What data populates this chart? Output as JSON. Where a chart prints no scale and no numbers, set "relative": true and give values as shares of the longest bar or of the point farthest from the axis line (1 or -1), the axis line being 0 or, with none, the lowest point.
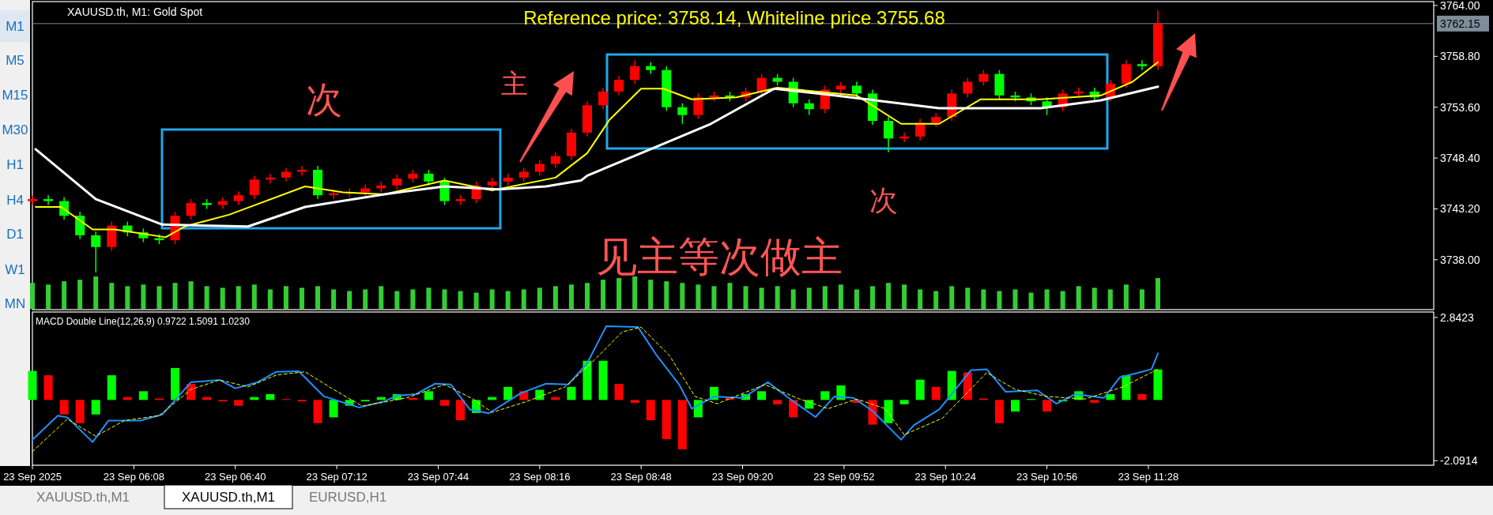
{
  "chart_data": [
    {
      "type": "candlestick",
      "title": "XAUUSD.th, M1:  Gold Spot",
      "x": [
        "2025-09-23T05:36",
        "2025-09-23T05:41",
        "2025-09-23T05:46",
        "2025-09-23T05:51",
        "2025-09-23T05:56",
        "2025-09-23T06:01",
        "2025-09-23T06:06",
        "2025-09-23T06:11",
        "2025-09-23T06:16",
        "2025-09-23T06:21",
        "2025-09-23T06:26",
        "2025-09-23T06:31",
        "2025-09-23T06:36",
        "2025-09-23T06:41",
        "2025-09-23T06:46",
        "2025-09-23T06:51",
        "2025-09-23T06:56",
        "2025-09-23T07:01",
        "2025-09-23T07:06",
        "2025-09-23T07:11",
        "2025-09-23T07:16",
        "2025-09-23T07:21",
        "2025-09-23T07:26",
        "2025-09-23T07:31",
        "2025-09-23T07:36",
        "2025-09-23T07:41",
        "2025-09-23T07:46",
        "2025-09-23T07:51",
        "2025-09-23T07:56",
        "2025-09-23T08:01",
        "2025-09-23T08:06",
        "2025-09-23T08:11",
        "2025-09-23T08:16",
        "2025-09-23T08:21",
        "2025-09-23T08:26",
        "2025-09-23T08:31",
        "2025-09-23T08:36",
        "2025-09-23T08:41",
        "2025-09-23T08:46",
        "2025-09-23T08:51",
        "2025-09-23T08:56",
        "2025-09-23T09:01",
        "2025-09-23T09:06",
        "2025-09-23T09:11",
        "2025-09-23T09:16",
        "2025-09-23T09:21",
        "2025-09-23T09:26",
        "2025-09-23T09:31",
        "2025-09-23T09:36",
        "2025-09-23T09:41",
        "2025-09-23T09:46",
        "2025-09-23T09:51",
        "2025-09-23T09:56",
        "2025-09-23T10:01",
        "2025-09-23T10:06",
        "2025-09-23T10:11",
        "2025-09-23T10:16",
        "2025-09-23T10:21",
        "2025-09-23T10:26",
        "2025-09-23T10:31",
        "2025-09-23T10:36",
        "2025-09-23T10:41",
        "2025-09-23T10:46",
        "2025-09-23T10:51",
        "2025-09-23T10:56",
        "2025-09-23T11:01",
        "2025-09-23T11:06",
        "2025-09-23T11:11",
        "2025-09-23T11:16",
        "2025-09-23T11:21",
        "2025-09-23T11:26",
        "2025-09-23T11:31"
      ],
      "ohlc": [
        [
          3744.0,
          3744.6,
          3743.6,
          3744.2
        ],
        [
          3744.2,
          3744.6,
          3743.6,
          3744.0
        ],
        [
          3744.0,
          3744.4,
          3742.1,
          3742.5
        ],
        [
          3742.5,
          3742.9,
          3740.1,
          3740.5
        ],
        [
          3740.5,
          3740.9,
          3736.7,
          3739.3
        ],
        [
          3739.3,
          3741.9,
          3738.9,
          3741.5
        ],
        [
          3741.5,
          3741.9,
          3740.4,
          3740.8
        ],
        [
          3740.8,
          3741.2,
          3739.8,
          3740.2
        ],
        [
          3740.2,
          3740.6,
          3739.6,
          3740.0
        ],
        [
          3740.0,
          3742.9,
          3739.6,
          3742.5
        ],
        [
          3742.5,
          3744.2,
          3742.1,
          3743.8
        ],
        [
          3743.8,
          3744.2,
          3743.2,
          3743.6
        ],
        [
          3743.6,
          3744.4,
          3743.2,
          3744.0
        ],
        [
          3744.0,
          3745.0,
          3743.6,
          3744.6
        ],
        [
          3744.6,
          3746.6,
          3744.2,
          3746.2
        ],
        [
          3746.2,
          3746.8,
          3745.8,
          3746.4
        ],
        [
          3746.4,
          3747.4,
          3746.0,
          3747.0
        ],
        [
          3747.0,
          3747.6,
          3746.6,
          3747.2
        ],
        [
          3747.2,
          3747.6,
          3744.2,
          3744.6
        ],
        [
          3744.6,
          3745.2,
          3744.2,
          3744.8
        ],
        [
          3744.8,
          3745.3,
          3744.4,
          3744.9
        ],
        [
          3744.9,
          3745.7,
          3744.5,
          3745.3
        ],
        [
          3745.3,
          3746.0,
          3744.9,
          3745.6
        ],
        [
          3745.6,
          3746.7,
          3745.2,
          3746.3
        ],
        [
          3746.3,
          3747.2,
          3745.9,
          3746.8
        ],
        [
          3746.8,
          3747.2,
          3745.6,
          3746.0
        ],
        [
          3746.0,
          3746.4,
          3743.6,
          3744.0
        ],
        [
          3744.0,
          3744.6,
          3743.6,
          3744.2
        ],
        [
          3744.2,
          3746.0,
          3743.8,
          3745.6
        ],
        [
          3745.6,
          3746.4,
          3745.2,
          3746.0
        ],
        [
          3746.0,
          3746.8,
          3745.6,
          3746.4
        ],
        [
          3746.4,
          3747.4,
          3746.0,
          3747.0
        ],
        [
          3747.0,
          3748.2,
          3746.6,
          3747.8
        ],
        [
          3747.8,
          3749.0,
          3747.4,
          3748.6
        ],
        [
          3748.6,
          3751.4,
          3748.2,
          3751.0
        ],
        [
          3751.0,
          3754.2,
          3750.6,
          3753.8
        ],
        [
          3753.8,
          3755.6,
          3753.4,
          3755.2
        ],
        [
          3755.2,
          3756.8,
          3754.8,
          3756.4
        ],
        [
          3756.4,
          3758.4,
          3756.0,
          3757.8
        ],
        [
          3757.8,
          3758.2,
          3757.0,
          3757.4
        ],
        [
          3757.4,
          3757.8,
          3753.2,
          3753.6
        ],
        [
          3753.6,
          3754.0,
          3751.9,
          3752.8
        ],
        [
          3752.8,
          3755.0,
          3752.4,
          3754.6
        ],
        [
          3754.6,
          3755.2,
          3754.2,
          3754.8
        ],
        [
          3754.8,
          3755.2,
          3754.2,
          3754.6
        ],
        [
          3754.6,
          3755.6,
          3754.2,
          3755.2
        ],
        [
          3755.2,
          3757.0,
          3754.8,
          3756.6
        ],
        [
          3756.6,
          3757.0,
          3755.8,
          3756.2
        ],
        [
          3756.2,
          3756.6,
          3753.6,
          3754.0
        ],
        [
          3754.0,
          3754.4,
          3752.8,
          3753.4
        ],
        [
          3753.4,
          3755.8,
          3753.0,
          3755.4
        ],
        [
          3755.4,
          3756.2,
          3755.0,
          3755.8
        ],
        [
          3755.8,
          3756.2,
          3754.6,
          3755.0
        ],
        [
          3755.0,
          3755.4,
          3751.8,
          3752.2
        ],
        [
          3752.2,
          3752.6,
          3749.0,
          3750.4
        ],
        [
          3750.4,
          3751.0,
          3750.0,
          3750.6
        ],
        [
          3750.6,
          3752.4,
          3750.2,
          3752.0
        ],
        [
          3752.0,
          3753.0,
          3751.6,
          3752.6
        ],
        [
          3752.6,
          3755.4,
          3752.2,
          3755.0
        ],
        [
          3755.0,
          3756.6,
          3754.6,
          3756.2
        ],
        [
          3756.2,
          3757.4,
          3755.8,
          3757.0
        ],
        [
          3757.0,
          3757.4,
          3754.4,
          3754.8
        ],
        [
          3754.8,
          3755.2,
          3754.2,
          3754.6
        ],
        [
          3754.6,
          3755.0,
          3753.8,
          3754.2
        ],
        [
          3754.2,
          3754.6,
          3752.8,
          3753.6
        ],
        [
          3753.6,
          3755.4,
          3753.2,
          3755.0
        ],
        [
          3755.0,
          3755.6,
          3754.6,
          3755.2
        ],
        [
          3755.2,
          3755.6,
          3754.2,
          3754.6
        ],
        [
          3754.6,
          3756.4,
          3754.2,
          3756.0
        ],
        [
          3756.0,
          3758.4,
          3755.6,
          3758.0
        ],
        [
          3758.0,
          3758.4,
          3757.4,
          3757.8
        ],
        [
          3757.8,
          3763.5,
          3757.4,
          3762.15
        ]
      ],
      "colors": [
        "#ff0000",
        "#00ff00",
        "#00ff00",
        "#00ff00",
        "#00ff00",
        "#ff0000",
        "#00ff00",
        "#00ff00",
        "#00ff00",
        "#ff0000",
        "#ff0000",
        "#00ff00",
        "#ff0000",
        "#ff0000",
        "#ff0000",
        "#ff0000",
        "#ff0000",
        "#ff0000",
        "#00ff00",
        "#ff0000",
        "#ff0000",
        "#ff0000",
        "#ff0000",
        "#ff0000",
        "#ff0000",
        "#00ff00",
        "#00ff00",
        "#ff0000",
        "#ff0000",
        "#ff0000",
        "#ff0000",
        "#ff0000",
        "#ff0000",
        "#ff0000",
        "#ff0000",
        "#ff0000",
        "#ff0000",
        "#ff0000",
        "#ff0000",
        "#00ff00",
        "#00ff00",
        "#00ff00",
        "#ff0000",
        "#ff0000",
        "#00ff00",
        "#ff0000",
        "#ff0000",
        "#00ff00",
        "#00ff00",
        "#00ff00",
        "#ff0000",
        "#ff0000",
        "#00ff00",
        "#00ff00",
        "#00ff00",
        "#ff0000",
        "#ff0000",
        "#ff0000",
        "#ff0000",
        "#ff0000",
        "#ff0000",
        "#00ff00",
        "#00ff00",
        "#00ff00",
        "#00ff00",
        "#ff0000",
        "#ff0000",
        "#00ff00",
        "#ff0000",
        "#ff0000",
        "#00ff00",
        "#ff0000"
      ],
      "series": [
        {
          "type": "line",
          "color": "#ffff00",
          "x": [
            "2025-09-23T05:37",
            "2025-09-23T05:45",
            "2025-09-23T05:55",
            "2025-09-23T06:02",
            "2025-09-23T06:18",
            "2025-09-23T06:24",
            "2025-09-23T06:38",
            "2025-09-23T07:02",
            "2025-09-23T07:14",
            "2025-09-23T07:27",
            "2025-09-23T07:46",
            "2025-09-23T08:01",
            "2025-09-23T08:21",
            "2025-09-23T08:31",
            "2025-09-23T08:38",
            "2025-09-23T08:48",
            "2025-09-23T08:55",
            "2025-09-23T09:04",
            "2025-09-23T09:18",
            "2025-09-23T09:31",
            "2025-09-23T09:56",
            "2025-09-23T10:10",
            "2025-09-23T10:22",
            "2025-09-23T10:35",
            "2025-09-23T10:54",
            "2025-09-23T11:13",
            "2025-09-23T11:23",
            "2025-09-23T11:31"
          ],
          "values": [
            3743.4,
            3743.4,
            3741.1,
            3741.1,
            3740.3,
            3741.4,
            3742.6,
            3745.5,
            3744.9,
            3744.7,
            3746.1,
            3745.1,
            3746.4,
            3748.9,
            3752.3,
            3755.5,
            3755.5,
            3754.4,
            3754.6,
            3755.6,
            3754.8,
            3751.9,
            3751.9,
            3754.4,
            3754.4,
            3754.8,
            3756.2,
            3758.2
          ]
        },
        {
          "type": "line",
          "color": "#ffffff",
          "x": [
            "2025-09-23T05:37",
            "2025-09-23T05:56",
            "2025-09-23T06:17",
            "2025-09-23T06:44",
            "2025-09-23T07:02",
            "2025-09-23T07:27",
            "2025-09-23T07:46",
            "2025-09-23T08:03",
            "2025-09-23T08:18",
            "2025-09-23T08:29",
            "2025-09-23T08:31",
            "2025-09-23T08:48",
            "2025-09-23T09:10",
            "2025-09-23T09:30",
            "2025-09-23T09:49",
            "2025-09-23T10:22",
            "2025-09-23T10:54",
            "2025-09-23T11:13",
            "2025-09-23T11:31"
          ],
          "values": [
            3749.3,
            3744.2,
            3741.6,
            3741.4,
            3743.4,
            3744.7,
            3745.5,
            3745.2,
            3745.5,
            3746.1,
            3746.6,
            3748.9,
            3751.9,
            3755.5,
            3754.8,
            3753.5,
            3753.5,
            3754.3,
            3755.7
          ]
        }
      ],
      "xlim": [
        "2025-09-23T05:36",
        "2025-09-23T12:58"
      ],
      "ylim": [
        3732.9,
        3764.4
      ],
      "yticks": [
        {
          "value": 3764,
          "label": "3764.00"
        },
        {
          "value": 3758.8,
          "label": "3758.80"
        },
        {
          "value": 3753.6,
          "label": "3753.60"
        },
        {
          "value": 3748.4,
          "label": "3748.40"
        },
        {
          "value": 3743.2,
          "label": "3743.20"
        },
        {
          "value": 3738,
          "label": "3738.00"
        }
      ],
      "ref_lines": [
        {
          "axis": "y",
          "value": 3762.15,
          "label": "3762.15",
          "color": "#7f8c99"
        }
      ],
      "annotations": [
        "Reference price: 3758.14, Whiteline price 3755.68",
        "次",
        "主",
        "次",
        "见主等次做主"
      ],
      "tick_labels": "y"
    },
    {
      "type": "bar",
      "relative": true,
      "color": "#32cd32",
      "x": [
        "2025-09-23T05:36",
        "2025-09-23T05:41",
        "2025-09-23T05:46",
        "2025-09-23T05:51",
        "2025-09-23T05:56",
        "2025-09-23T06:01",
        "2025-09-23T06:06",
        "2025-09-23T06:11",
        "2025-09-23T06:16",
        "2025-09-23T06:21",
        "2025-09-23T06:26",
        "2025-09-23T06:31",
        "2025-09-23T06:36",
        "2025-09-23T06:41",
        "2025-09-23T06:46",
        "2025-09-23T06:51",
        "2025-09-23T06:56",
        "2025-09-23T07:01",
        "2025-09-23T07:06",
        "2025-09-23T07:11",
        "2025-09-23T07:16",
        "2025-09-23T07:21",
        "2025-09-23T07:26",
        "2025-09-23T07:31",
        "2025-09-23T07:36",
        "2025-09-23T07:41",
        "2025-09-23T07:46",
        "2025-09-23T07:51",
        "2025-09-23T07:56",
        "2025-09-23T08:01",
        "2025-09-23T08:06",
        "2025-09-23T08:11",
        "2025-09-23T08:16",
        "2025-09-23T08:21",
        "2025-09-23T08:26",
        "2025-09-23T08:31",
        "2025-09-23T08:36",
        "2025-09-23T08:41",
        "2025-09-23T08:46",
        "2025-09-23T08:51",
        "2025-09-23T08:56",
        "2025-09-23T09:01",
        "2025-09-23T09:06",
        "2025-09-23T09:11",
        "2025-09-23T09:16",
        "2025-09-23T09:21",
        "2025-09-23T09:26",
        "2025-09-23T09:31",
        "2025-09-23T09:36",
        "2025-09-23T09:41",
        "2025-09-23T09:46",
        "2025-09-23T09:51",
        "2025-09-23T09:56",
        "2025-09-23T10:01",
        "2025-09-23T10:06",
        "2025-09-23T10:11",
        "2025-09-23T10:16",
        "2025-09-23T10:21",
        "2025-09-23T10:26",
        "2025-09-23T10:31",
        "2025-09-23T10:36",
        "2025-09-23T10:41",
        "2025-09-23T10:46",
        "2025-09-23T10:51",
        "2025-09-23T10:56",
        "2025-09-23T11:01",
        "2025-09-23T11:06",
        "2025-09-23T11:11",
        "2025-09-23T11:16",
        "2025-09-23T11:21",
        "2025-09-23T11:26",
        "2025-09-23T11:31"
      ],
      "values": [
        0.8,
        0.75,
        0.85,
        0.9,
        1.0,
        0.8,
        0.7,
        0.75,
        0.7,
        0.8,
        0.85,
        0.7,
        0.65,
        0.7,
        0.75,
        0.6,
        0.7,
        0.65,
        0.7,
        0.6,
        0.55,
        0.6,
        0.7,
        0.55,
        0.6,
        0.65,
        0.6,
        0.55,
        0.5,
        0.6,
        0.55,
        0.6,
        0.65,
        0.7,
        0.75,
        0.8,
        0.9,
        0.95,
        1.0,
        0.9,
        0.85,
        0.8,
        0.75,
        0.7,
        0.8,
        0.7,
        0.65,
        0.7,
        0.6,
        0.65,
        0.7,
        0.75,
        0.6,
        0.7,
        0.8,
        0.75,
        0.6,
        0.55,
        0.7,
        0.65,
        0.6,
        0.55,
        0.6,
        0.5,
        0.6,
        0.55,
        0.7,
        0.65,
        0.6,
        0.75,
        0.6,
        0.95
      ],
      "xlim": [
        "2025-09-23T05:36",
        "2025-09-23T12:58"
      ],
      "tick_labels": false
    },
    {
      "type": "bar",
      "x": [
        "2025-09-23T05:36",
        "2025-09-23T05:41",
        "2025-09-23T05:46",
        "2025-09-23T05:51",
        "2025-09-23T05:56",
        "2025-09-23T06:01",
        "2025-09-23T06:06",
        "2025-09-23T06:11",
        "2025-09-23T06:16",
        "2025-09-23T06:21",
        "2025-09-23T06:26",
        "2025-09-23T06:31",
        "2025-09-23T06:36",
        "2025-09-23T06:41",
        "2025-09-23T06:46",
        "2025-09-23T06:51",
        "2025-09-23T06:56",
        "2025-09-23T07:01",
        "2025-09-23T07:06",
        "2025-09-23T07:11",
        "2025-09-23T07:16",
        "2025-09-23T07:21",
        "2025-09-23T07:26",
        "2025-09-23T07:31",
        "2025-09-23T07:36",
        "2025-09-23T07:41",
        "2025-09-23T07:46",
        "2025-09-23T07:51",
        "2025-09-23T07:56",
        "2025-09-23T08:01",
        "2025-09-23T08:06",
        "2025-09-23T08:11",
        "2025-09-23T08:16",
        "2025-09-23T08:21",
        "2025-09-23T08:26",
        "2025-09-23T08:31",
        "2025-09-23T08:36",
        "2025-09-23T08:41",
        "2025-09-23T08:46",
        "2025-09-23T08:51",
        "2025-09-23T08:56",
        "2025-09-23T09:01",
        "2025-09-23T09:06",
        "2025-09-23T09:11",
        "2025-09-23T09:16",
        "2025-09-23T09:21",
        "2025-09-23T09:26",
        "2025-09-23T09:31",
        "2025-09-23T09:36",
        "2025-09-23T09:41",
        "2025-09-23T09:46",
        "2025-09-23T09:51",
        "2025-09-23T09:56",
        "2025-09-23T10:01",
        "2025-09-23T10:06",
        "2025-09-23T10:11",
        "2025-09-23T10:16",
        "2025-09-23T10:21",
        "2025-09-23T10:26",
        "2025-09-23T10:31",
        "2025-09-23T10:36",
        "2025-09-23T10:41",
        "2025-09-23T10:46",
        "2025-09-23T10:51",
        "2025-09-23T10:56",
        "2025-09-23T11:01",
        "2025-09-23T11:06",
        "2025-09-23T11:11",
        "2025-09-23T11:16",
        "2025-09-23T11:21",
        "2025-09-23T11:26",
        "2025-09-23T11:31"
      ],
      "values": [
        1.0,
        0.85,
        -0.5,
        -0.8,
        -0.5,
        0.85,
        0.1,
        0.3,
        0.05,
        1.1,
        0.55,
        0.1,
        -0.05,
        -0.2,
        0.1,
        0.2,
        0.03,
        -0.05,
        -0.8,
        -0.6,
        -0.2,
        -0.05,
        0.1,
        0.2,
        0.07,
        0.3,
        -0.2,
        -0.7,
        -0.45,
        0.1,
        0.45,
        0.3,
        0.35,
        0.1,
        0.45,
        1.35,
        1.35,
        0.55,
        -0.1,
        -0.7,
        -1.35,
        -1.7,
        -0.6,
        0.45,
        0.1,
        0.2,
        0.3,
        -0.15,
        -0.6,
        -0.3,
        0.3,
        0.5,
        -0.1,
        -0.85,
        -0.8,
        -0.15,
        0.7,
        0.45,
        1.0,
        0.95,
        0.05,
        -0.8,
        -0.4,
        0.03,
        -0.4,
        -0.05,
        0.3,
        -0.1,
        0.2,
        0.85,
        0.2,
        1.05
      ],
      "colors": [
        "#00ff00",
        "#ff0000",
        "#ff0000",
        "#ff0000",
        "#00ff00",
        "#00ff00",
        "#ff0000",
        "#00ff00",
        "#ff0000",
        "#00ff00",
        "#ff0000",
        "#ff0000",
        "#ff0000",
        "#ff0000",
        "#00ff00",
        "#00ff00",
        "#ff0000",
        "#ff0000",
        "#ff0000",
        "#00ff00",
        "#00ff00",
        "#00ff00",
        "#00ff00",
        "#00ff00",
        "#ff0000",
        "#00ff00",
        "#ff0000",
        "#ff0000",
        "#00ff00",
        "#00ff00",
        "#00ff00",
        "#ff0000",
        "#00ff00",
        "#ff0000",
        "#00ff00",
        "#00ff00",
        "#00ff00",
        "#ff0000",
        "#ff0000",
        "#ff0000",
        "#ff0000",
        "#ff0000",
        "#00ff00",
        "#00ff00",
        "#ff0000",
        "#00ff00",
        "#00ff00",
        "#ff0000",
        "#ff0000",
        "#00ff00",
        "#00ff00",
        "#00ff00",
        "#ff0000",
        "#ff0000",
        "#00ff00",
        "#00ff00",
        "#00ff00",
        "#ff0000",
        "#00ff00",
        "#ff0000",
        "#ff0000",
        "#ff0000",
        "#00ff00",
        "#00ff00",
        "#ff0000",
        "#00ff00",
        "#00ff00",
        "#ff0000",
        "#00ff00",
        "#00ff00",
        "#ff0000",
        "#00ff00"
      ],
      "series": [
        {
          "type": "line",
          "color": "#1e90ff",
          "x": [
            "2025-09-23T05:36",
            "2025-09-23T05:44",
            "2025-09-23T05:47",
            "2025-09-23T05:55",
            "2025-09-23T06:00",
            "2025-09-23T06:10",
            "2025-09-23T06:17",
            "2025-09-23T06:26",
            "2025-09-23T06:35",
            "2025-09-23T06:40",
            "2025-09-23T06:47",
            "2025-09-23T06:53",
            "2025-09-23T07:00",
            "2025-09-23T07:08",
            "2025-09-23T07:19",
            "2025-09-23T07:27",
            "2025-09-23T07:31",
            "2025-09-23T07:37",
            "2025-09-23T07:43",
            "2025-09-23T07:48",
            "2025-09-23T07:54",
            "2025-09-23T08:00",
            "2025-09-23T08:10",
            "2025-09-23T08:18",
            "2025-09-23T08:25",
            "2025-09-23T08:31",
            "2025-09-23T08:37",
            "2025-09-23T08:47",
            "2025-09-23T08:53",
            "2025-09-23T09:00",
            "2025-09-23T09:04",
            "2025-09-23T09:11",
            "2025-09-23T09:20",
            "2025-09-23T09:28",
            "2025-09-23T09:35",
            "2025-09-23T09:43",
            "2025-09-23T09:49",
            "2025-09-23T09:55",
            "2025-09-23T10:01",
            "2025-09-23T10:10",
            "2025-09-23T10:14",
            "2025-09-23T10:22",
            "2025-09-23T10:32",
            "2025-09-23T10:37",
            "2025-09-23T10:43",
            "2025-09-23T10:53",
            "2025-09-23T10:59",
            "2025-09-23T11:05",
            "2025-09-23T11:14",
            "2025-09-23T11:19",
            "2025-09-23T11:25",
            "2025-09-23T11:29",
            "2025-09-23T11:31"
          ],
          "values": [
            -1.37,
            -0.54,
            -0.6,
            -1.45,
            -0.71,
            -0.71,
            -0.5,
            0.61,
            0.69,
            0.4,
            0.61,
            0.97,
            0.99,
            0.12,
            -0.26,
            -0.05,
            0.15,
            0.2,
            0.56,
            0.53,
            -0.33,
            -0.46,
            0.23,
            0.56,
            0.53,
            1.27,
            2.54,
            2.51,
            1.52,
            0.53,
            -0.3,
            0.12,
            0.07,
            0.61,
            0.03,
            -0.59,
            0.12,
            0.07,
            -0.38,
            -1.37,
            -0.87,
            -0.33,
            1.02,
            1.06,
            0.28,
            0.33,
            -0.13,
            0.2,
            0.07,
            0.78,
            0.94,
            1.06,
            1.6
          ]
        },
        {
          "type": "line",
          "color": "#ffff00",
          "line_style": "dashed",
          "x": [
            "2025-09-23T05:36",
            "2025-09-23T05:47",
            "2025-09-23T05:56",
            "2025-09-23T06:05",
            "2025-09-23T06:16",
            "2025-09-23T06:26",
            "2025-09-23T06:35",
            "2025-09-23T06:44",
            "2025-09-23T06:53",
            "2025-09-23T07:02",
            "2025-09-23T07:11",
            "2025-09-23T07:20",
            "2025-09-23T07:34",
            "2025-09-23T07:46",
            "2025-09-23T07:55",
            "2025-09-23T08:01",
            "2025-09-23T08:12",
            "2025-09-23T08:24",
            "2025-09-23T08:33",
            "2025-09-23T08:42",
            "2025-09-23T08:48",
            "2025-09-23T08:57",
            "2025-09-23T09:05",
            "2025-09-23T09:12",
            "2025-09-23T09:27",
            "2025-09-23T09:38",
            "2025-09-23T09:47",
            "2025-09-23T09:56",
            "2025-09-23T10:05",
            "2025-09-23T10:11",
            "2025-09-23T10:23",
            "2025-09-23T10:37",
            "2025-09-23T10:46",
            "2025-09-23T10:56",
            "2025-09-23T11:08",
            "2025-09-23T11:20",
            "2025-09-23T11:31"
          ],
          "values": [
            -1.78,
            -0.66,
            -1.25,
            -0.71,
            -0.54,
            0.36,
            0.69,
            0.45,
            0.86,
            0.97,
            0.36,
            -0.21,
            0.07,
            0.53,
            0.03,
            -0.43,
            -0.05,
            0.45,
            1.35,
            2.34,
            2.51,
            1.52,
            0.12,
            -0.13,
            0.53,
            0.03,
            -0.3,
            0.03,
            -0.3,
            -1.2,
            -0.63,
            0.94,
            0.36,
            0.12,
            0.03,
            0.45,
            1.06
          ]
        }
      ],
      "xlim": [
        "2025-09-23T05:36",
        "2025-09-23T12:58"
      ],
      "ylim": [
        -2.25,
        3.03
      ],
      "yticks": [
        2.8423,
        -2.0914
      ],
      "xticks": [
        {
          "value": "2025-09-23T05:36",
          "label": "23 Sep 2025"
        },
        {
          "value": "2025-09-23T06:08",
          "label": "23 Sep 06:08"
        },
        {
          "value": "2025-09-23T06:40",
          "label": "23 Sep 06:40"
        },
        {
          "value": "2025-09-23T07:12",
          "label": "23 Sep 07:12"
        },
        {
          "value": "2025-09-23T07:44",
          "label": "23 Sep 07:44"
        },
        {
          "value": "2025-09-23T08:16",
          "label": "23 Sep 08:16"
        },
        {
          "value": "2025-09-23T08:48",
          "label": "23 Sep 08:48"
        },
        {
          "value": "2025-09-23T09:20",
          "label": "23 Sep 09:20"
        },
        {
          "value": "2025-09-23T09:52",
          "label": "23 Sep 09:52"
        },
        {
          "value": "2025-09-23T10:24",
          "label": "23 Sep 10:24"
        },
        {
          "value": "2025-09-23T10:56",
          "label": "23 Sep 10:56"
        },
        {
          "value": "2025-09-23T11:28",
          "label": "23 Sep 11:28"
        }
      ],
      "annotations": [
        "MACD Double Line(12,26,9) 0.9722 1.5091 1.0230"
      ]
    },
    {
      "type": "other",
      "annotations": [
        "M1",
        "M5",
        "M15",
        "M30",
        "H1",
        "H4",
        "D1",
        "W1",
        "MN",
        "XAUUSD.th,M1",
        "XAUUSD.th,M1",
        "EURUSD,H1"
      ]
    }
  ]
}
